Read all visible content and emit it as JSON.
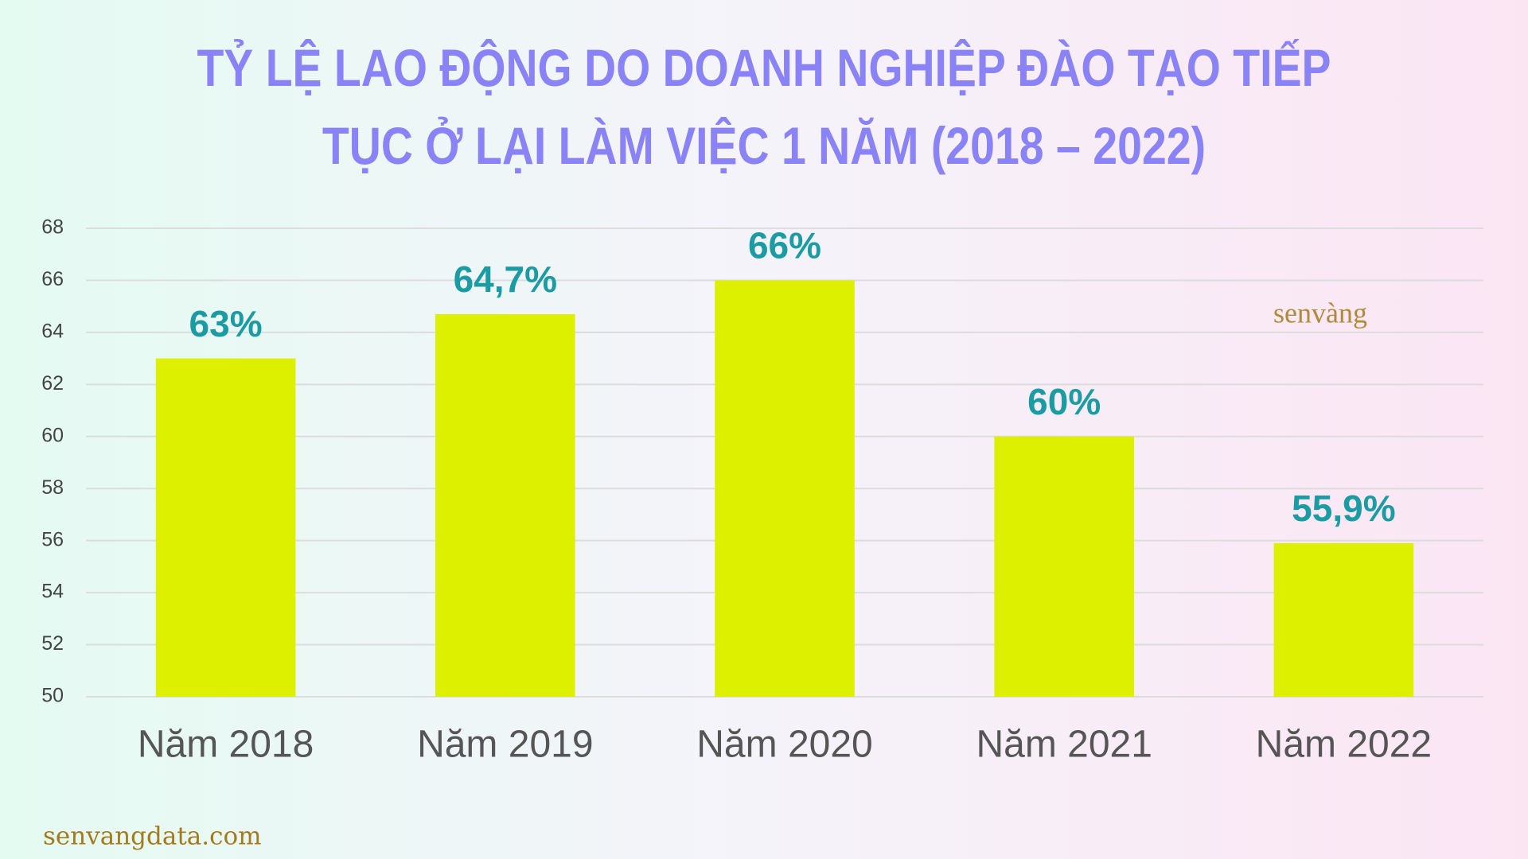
{
  "chart_data": {
    "type": "bar",
    "title": "TỶ LỆ LAO ĐỘNG DO DOANH NGHIỆP ĐÀO TẠO TIẾP TỤC Ở LẠI LÀM VIỆC 1 NĂM (2018 – 2022)",
    "categories": [
      "Năm 2018",
      "Năm 2019",
      "Năm 2020",
      "Năm 2021",
      "Năm 2022"
    ],
    "values": [
      63,
      64.7,
      66,
      60,
      55.9
    ],
    "value_labels": [
      "63%",
      "64,7%",
      "66%",
      "60%",
      "55,9%"
    ],
    "color": "#dcf000",
    "ylim": [
      50,
      68
    ],
    "yticks": [
      50,
      52,
      54,
      56,
      58,
      60,
      62,
      64,
      66,
      68
    ],
    "grid": true,
    "logo": "senvàng",
    "website": "senvangdata.com"
  }
}
